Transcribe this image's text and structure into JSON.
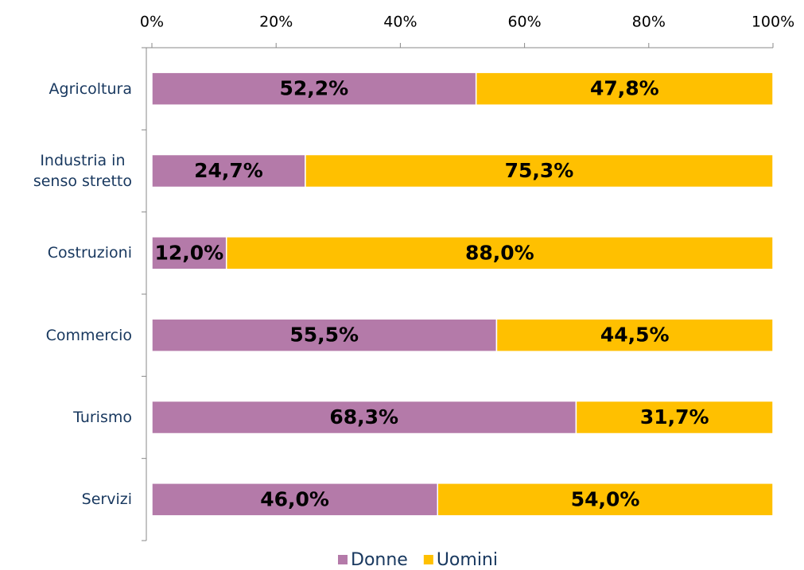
{
  "chart_data": {
    "type": "stacked_barh",
    "categories": [
      "Agricoltura",
      "Industria in\nsenso stretto",
      "Costruzioni",
      "Commercio",
      "Turismo",
      "Servizi"
    ],
    "series": [
      {
        "name": "Donne",
        "color": "#b47aa9",
        "values": [
          52.2,
          24.7,
          12.0,
          55.5,
          68.3,
          46.0
        ],
        "value_labels": [
          "52,2%",
          "24,7%",
          "12,0%",
          "55,5%",
          "68,3%",
          "46,0%"
        ]
      },
      {
        "name": "Uomini",
        "color": "#ffc000",
        "values": [
          47.8,
          75.3,
          88.0,
          44.5,
          31.7,
          54.0
        ],
        "value_labels": [
          "47,8%",
          "75,3%",
          "88,0%",
          "44,5%",
          "31,7%",
          "54,0%"
        ]
      }
    ],
    "xlim": [
      0,
      100
    ],
    "xticks": [
      {
        "value": 0,
        "label": "0%"
      },
      {
        "value": 20,
        "label": "20%"
      },
      {
        "value": 40,
        "label": "40%"
      },
      {
        "value": 60,
        "label": "60%"
      },
      {
        "value": 80,
        "label": "80%"
      },
      {
        "value": 100,
        "label": "100%"
      }
    ],
    "legend": "bottom"
  }
}
